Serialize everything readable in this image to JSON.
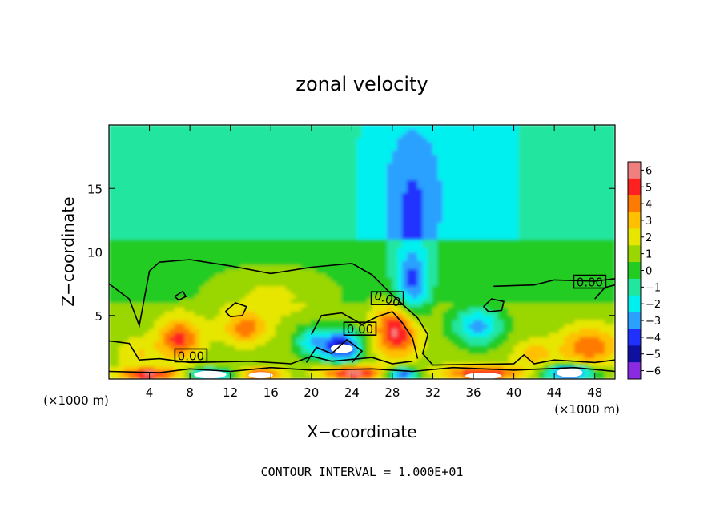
{
  "chart_data": {
    "type": "heatmap",
    "title": "zonal velocity",
    "xlabel": "X−coordinate",
    "ylabel": "Z−coordinate",
    "x_units": "(×1000 m)",
    "x_units_right": "(×1000 m)",
    "xlim": [
      0,
      50
    ],
    "ylim": [
      0,
      20
    ],
    "x_ticks": [
      "4",
      "8",
      "12",
      "16",
      "20",
      "24",
      "28",
      "32",
      "36",
      "40",
      "44",
      "48"
    ],
    "y_ticks": [
      "5",
      "10",
      "15"
    ],
    "colorbar": {
      "levels": [
        "6",
        "5",
        "4",
        "3",
        "2",
        "1",
        "0",
        "−1",
        "−2",
        "−3",
        "−4",
        "−5",
        "−6"
      ],
      "colors": [
        "#f08080",
        "#ff2020",
        "#ff7a00",
        "#ffc000",
        "#e6e600",
        "#9ad600",
        "#22cc22",
        "#20e6a0",
        "#00f0f0",
        "#2aa0ff",
        "#2030ff",
        "#1010a0",
        "#8a2be2"
      ]
    },
    "contour_labels": [
      "0.00",
      "0.00",
      "0.00",
      "0.00"
    ],
    "footer": "CONTOUR INTERVAL = 1.000E+01",
    "field": {
      "background_value": -1,
      "blobs": [
        {
          "x": 7,
          "z": 3.2,
          "v": 4.5,
          "rx": 2.0,
          "rz": 1.6
        },
        {
          "x": 13.5,
          "z": 4.0,
          "v": 3.5,
          "rx": 2.2,
          "rz": 1.2
        },
        {
          "x": 28.5,
          "z": 3.8,
          "v": 5.5,
          "rx": 2.2,
          "rz": 2.0
        },
        {
          "x": 47.5,
          "z": 2.6,
          "v": 4.0,
          "rx": 2.8,
          "rz": 1.5
        },
        {
          "x": 23,
          "z": 2.6,
          "v": -5.5,
          "rx": 2.0,
          "rz": 1.3
        },
        {
          "x": 36.5,
          "z": 4.2,
          "v": -3.5,
          "rx": 2.4,
          "rz": 1.5
        },
        {
          "x": 30,
          "z": 7.5,
          "v": -3.5,
          "rx": 1.6,
          "rz": 2.8
        },
        {
          "x": 20,
          "z": 3.0,
          "v": -2.5,
          "rx": 1.6,
          "rz": 1.2
        },
        {
          "x": 16,
          "z": 6.5,
          "v": 1.5,
          "rx": 5.0,
          "rz": 1.8
        },
        {
          "x": 42,
          "z": 2.0,
          "v": 2.5,
          "rx": 2.0,
          "rz": 1.0
        },
        {
          "x": 3,
          "z": 2.0,
          "v": 2.0,
          "rx": 2.0,
          "rz": 1.2
        },
        {
          "x": 30,
          "z": 14,
          "v": -2.0,
          "rx": 3.0,
          "rz": 6.0
        },
        {
          "x": 4,
          "z": 0.4,
          "v": 5.0,
          "rx": 3.0,
          "rz": 0.5
        },
        {
          "x": 10,
          "z": 0.4,
          "v": -5.0,
          "rx": 2.0,
          "rz": 0.4
        },
        {
          "x": 15,
          "z": 0.4,
          "v": 4.5,
          "rx": 2.0,
          "rz": 0.5
        },
        {
          "x": 24,
          "z": 0.5,
          "v": 5.5,
          "rx": 3.0,
          "rz": 0.6
        },
        {
          "x": 29,
          "z": 0.4,
          "v": -5.0,
          "rx": 1.5,
          "rz": 0.5
        },
        {
          "x": 37,
          "z": 0.5,
          "v": 5.0,
          "rx": 4.0,
          "rz": 0.6
        },
        {
          "x": 45.5,
          "z": 0.5,
          "v": -5.5,
          "rx": 2.5,
          "rz": 0.6
        }
      ]
    }
  }
}
